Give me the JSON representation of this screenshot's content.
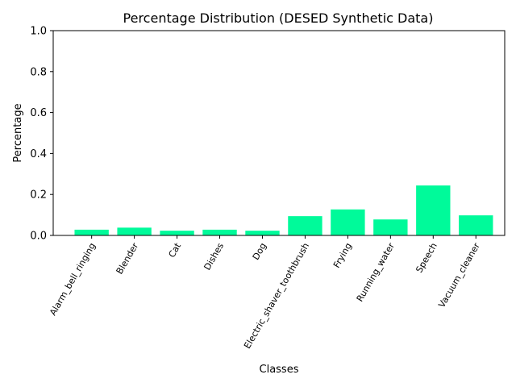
{
  "chart_data": {
    "type": "bar",
    "title": "Percentage Distribution (DESED Synthetic Data)",
    "xlabel": "Classes",
    "ylabel": "Percentage",
    "categories": [
      "Alarm_bell_ringing",
      "Blender",
      "Cat",
      "Dishes",
      "Dog",
      "Electric_shaver_toothbrush",
      "Frying",
      "Running_water",
      "Speech",
      "Vacuum_cleaner"
    ],
    "values": [
      0.028,
      0.038,
      0.023,
      0.028,
      0.023,
      0.094,
      0.127,
      0.078,
      0.244,
      0.098
    ],
    "ylim": [
      0,
      1.0
    ],
    "yticks": [
      "0.0",
      "0.2",
      "0.4",
      "0.6",
      "0.8",
      "1.0"
    ],
    "bar_color": "#00fa9a",
    "grid": false,
    "xtick_rotation": 60
  }
}
